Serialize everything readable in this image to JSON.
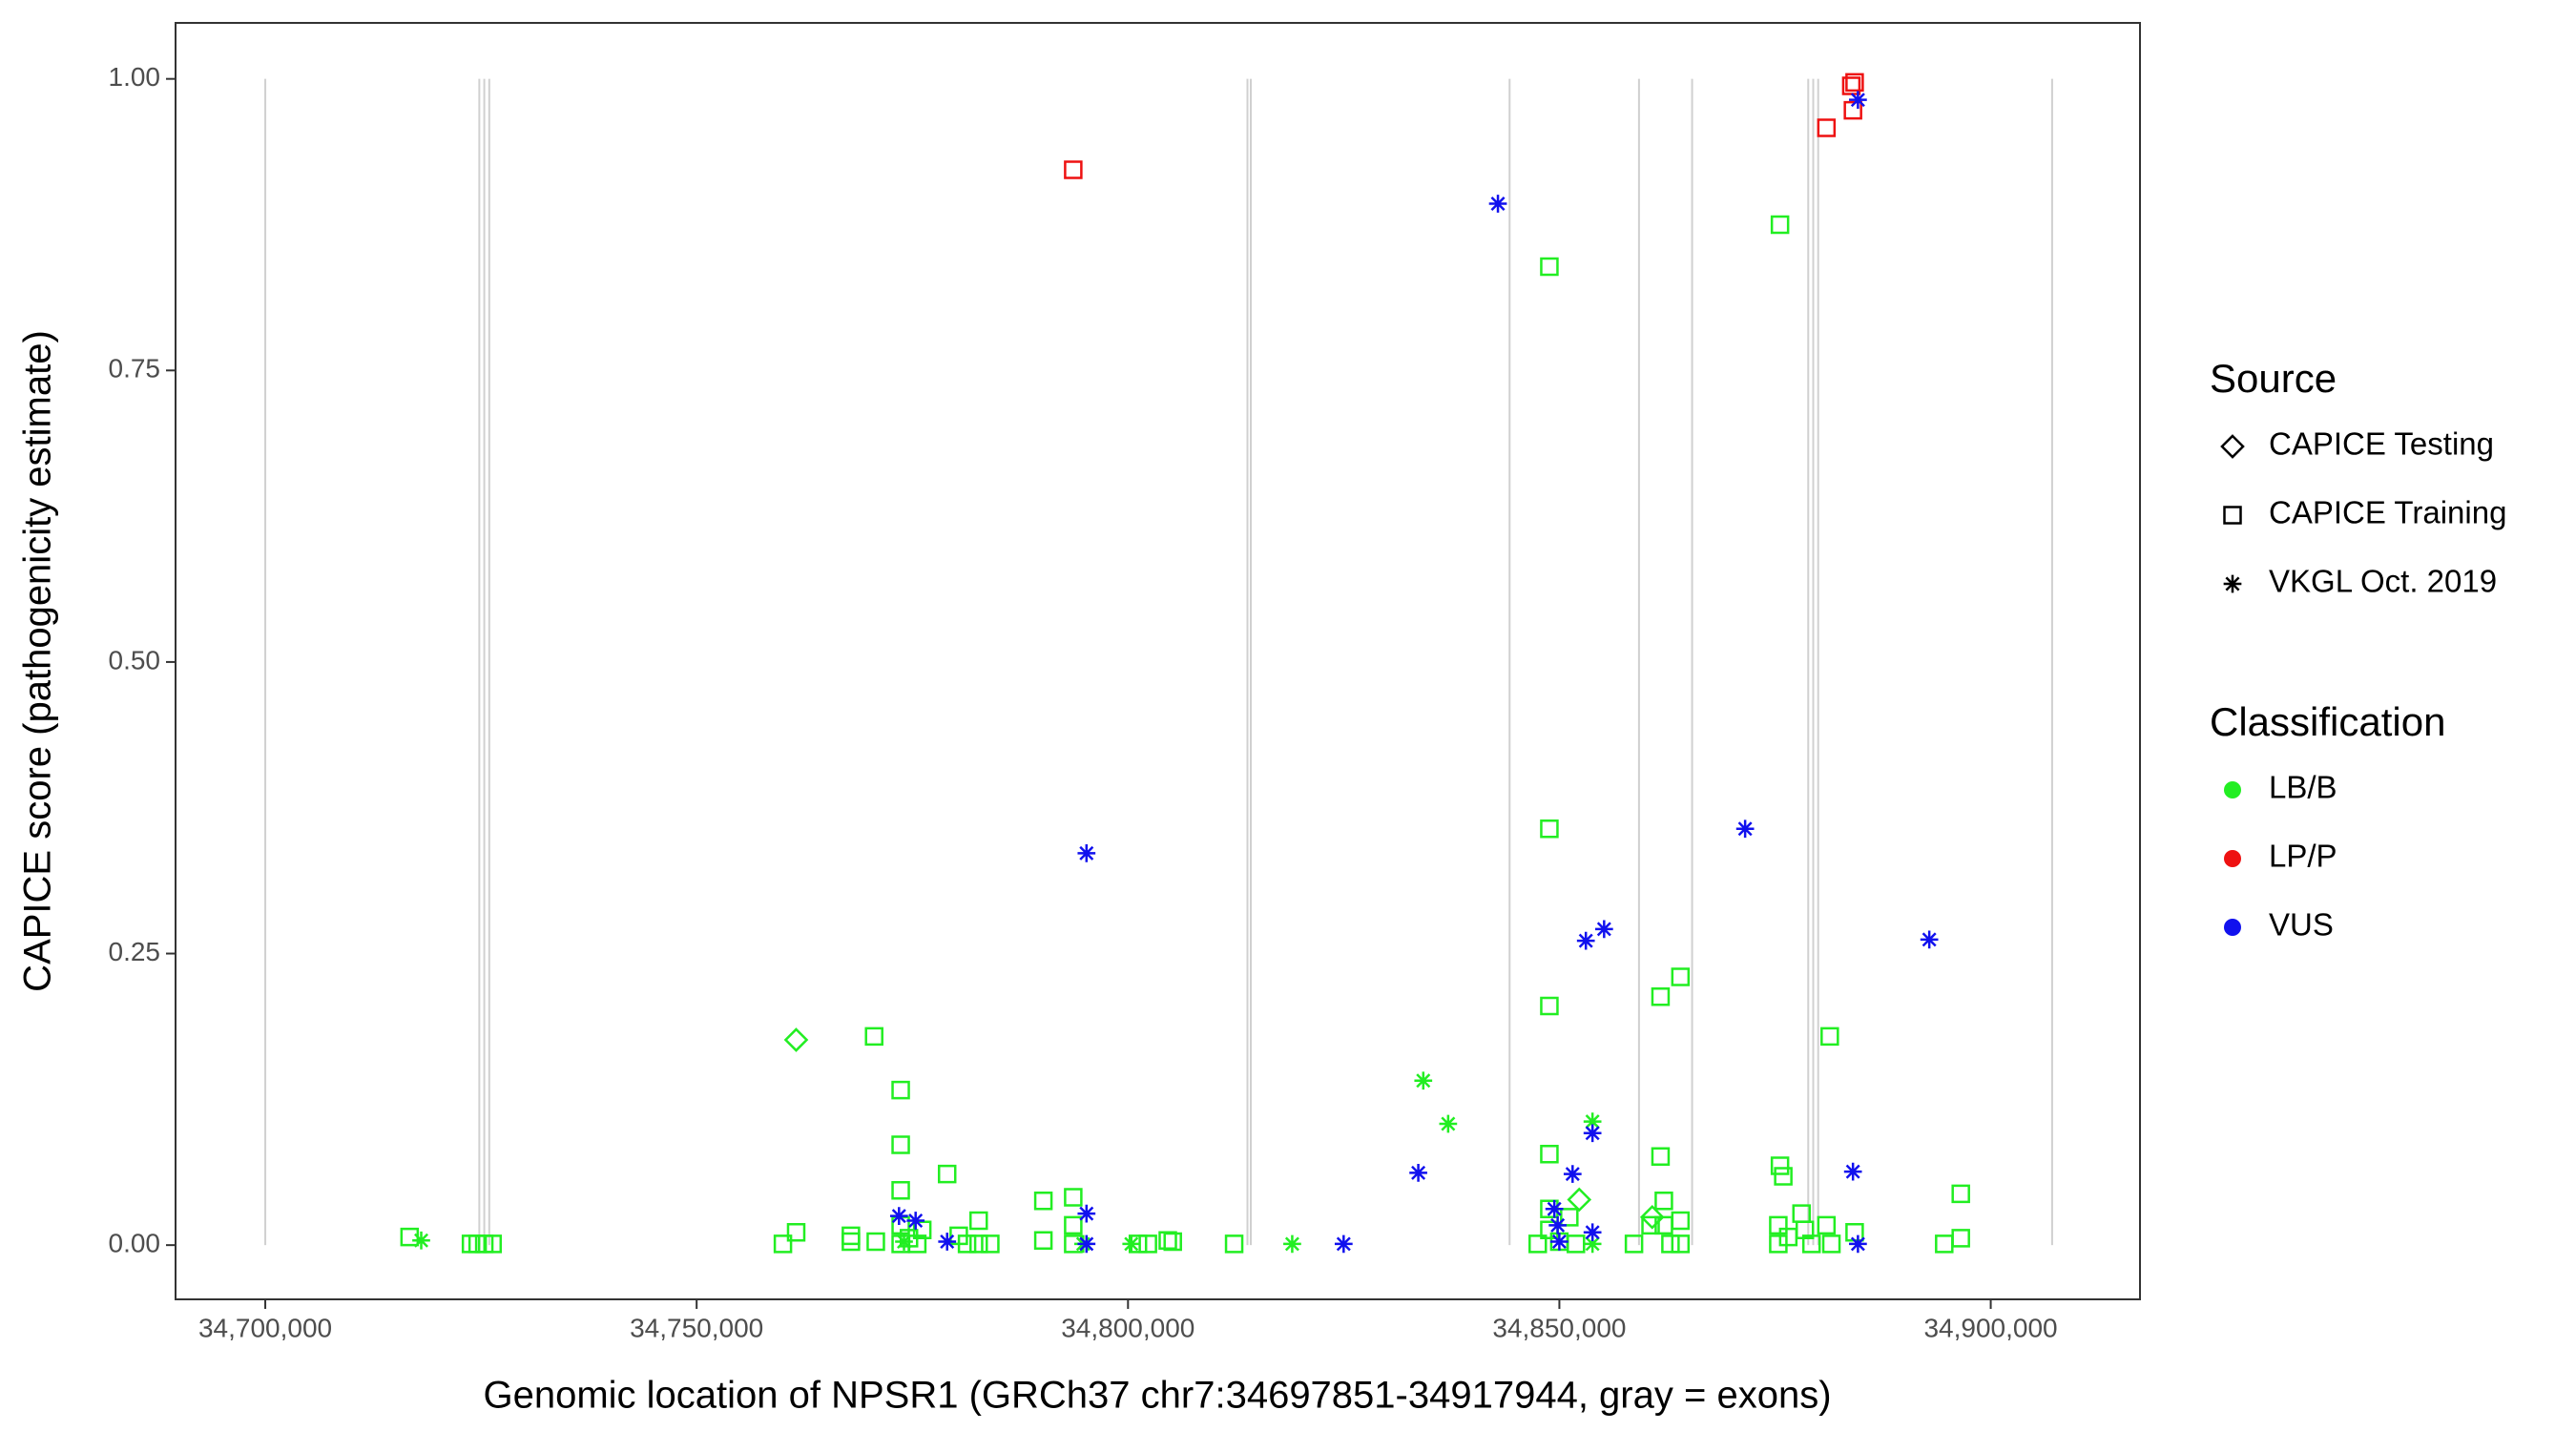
{
  "chart_data": {
    "type": "scatter",
    "x_label": "Genomic location of NPSR1 (GRCh37 chr7:34697851-34917944, gray = exons)",
    "y_label": "CAPICE score (pathogenicity estimate)",
    "xlim": [
      34689600,
      34917300
    ],
    "ylim": [
      -0.0465,
      1.048
    ],
    "xticks": [
      {
        "value": 34700000,
        "label": "34,700,000"
      },
      {
        "value": 34750000,
        "label": "34,750,000"
      },
      {
        "value": 34800000,
        "label": "34,800,000"
      },
      {
        "value": 34850000,
        "label": "34,850,000"
      },
      {
        "value": 34900000,
        "label": "34,900,000"
      }
    ],
    "yticks": [
      {
        "value": 0,
        "label": "0.00"
      },
      {
        "value": 0.25,
        "label": "0.25"
      },
      {
        "value": 0.5,
        "label": "0.50"
      },
      {
        "value": 0.75,
        "label": "0.75"
      },
      {
        "value": 1,
        "label": "1.00"
      }
    ],
    "exons": [
      34700000,
      34724808,
      34725385,
      34725962,
      34813846,
      34814231,
      34844231,
      34859231,
      34865385,
      34878846,
      34879423,
      34880000,
      34907115
    ],
    "exon_color": "#d0d0d0",
    "shape_legend": {
      "title": "Source",
      "items": [
        {
          "name": "CAPICE Testing",
          "shape": "diamond"
        },
        {
          "name": "CAPICE Training",
          "shape": "square"
        },
        {
          "name": "VKGL Oct. 2019",
          "shape": "asterisk"
        }
      ]
    },
    "color_legend": {
      "title": "Classification",
      "items": [
        {
          "name": "LB/B",
          "color": "#22ee22"
        },
        {
          "name": "LP/P",
          "color": "#ee1111"
        },
        {
          "name": "VUS",
          "color": "#1111ee"
        }
      ]
    },
    "series": [
      {
        "source": "CAPICE Training",
        "classification": "LB/B",
        "x": [
          34716730,
          34723845,
          34724614,
          34725384,
          34726345,
          34760000,
          34761536,
          34767882,
          34767882,
          34770574,
          34770766,
          34773651,
          34773651,
          34773651,
          34773651,
          34773651,
          34774612,
          34775574,
          34776151,
          34779035,
          34780381,
          34781343,
          34782689,
          34782689,
          34784035,
          34790189,
          34790189,
          34793650,
          34793650,
          34793650,
          34801150,
          34802304,
          34804611,
          34805188,
          34812303,
          34847494,
          34848840,
          34848840,
          34848840,
          34848840,
          34848840,
          34848840,
          34849994,
          34851148,
          34851917,
          34858648,
          34860571,
          34861724,
          34861724,
          34862109,
          34862109,
          34862878,
          34864032,
          34864032,
          34864032,
          34875570,
          34875570,
          34875955,
          34875378,
          34875378,
          34876531,
          34878070,
          34878454,
          34879224,
          34881339,
          34880954,
          34881531,
          34884223,
          34894608,
          34896531,
          34896531
        ],
        "values": [
          0.007,
          0.001,
          0.001,
          0.001,
          0.001,
          0.001,
          0.011,
          0.003,
          0.008,
          0.179,
          0.003,
          0.133,
          0.086,
          0.047,
          0.017,
          0.001,
          0.006,
          0.001,
          0.013,
          0.061,
          0.008,
          0.001,
          0.021,
          0.001,
          0.001,
          0.038,
          0.004,
          0.041,
          0.017,
          0.001,
          0.001,
          0.001,
          0.004,
          0.003,
          0.001,
          0.001,
          0.839,
          0.357,
          0.205,
          0.078,
          0.031,
          0.013,
          0.003,
          0.024,
          0.001,
          0.001,
          0.017,
          0.213,
          0.076,
          0.038,
          0.017,
          0.001,
          0.23,
          0.021,
          0.001,
          0.875,
          0.068,
          0.059,
          0.017,
          0.001,
          0.007,
          0.027,
          0.013,
          0.001,
          0.179,
          0.017,
          0.001,
          0.011,
          0.001,
          0.044,
          0.006
        ]
      },
      {
        "source": "CAPICE Testing",
        "classification": "LB/B",
        "x": [
          34761536,
          34852302,
          34860763
        ],
        "values": [
          0.176,
          0.039,
          0.024
        ]
      },
      {
        "source": "VKGL Oct. 2019",
        "classification": "LB/B",
        "x": [
          34718076,
          34774036,
          34794804,
          34800381,
          34819034,
          34834225,
          34837110,
          34853840,
          34853840
        ],
        "values": [
          0.004,
          0.003,
          0.001,
          0.001,
          0.001,
          0.141,
          0.104,
          0.106,
          0.001
        ]
      },
      {
        "source": "CAPICE Training",
        "classification": "LP/P",
        "x": [
          34793650,
          34880954,
          34883839,
          34884223,
          34884031
        ],
        "values": [
          0.922,
          0.958,
          0.994,
          0.997,
          0.973
        ]
      },
      {
        "source": "VKGL Oct. 2019",
        "classification": "VUS",
        "x": [
          34773459,
          34775382,
          34779035,
          34795189,
          34795189,
          34795189,
          34824995,
          34833649,
          34842879,
          34849417,
          34849802,
          34849994,
          34851533,
          34853071,
          34855186,
          34853840,
          34853840,
          34871532,
          34884031,
          34884608,
          34884608,
          34892877
        ],
        "values": [
          0.025,
          0.021,
          0.003,
          0.336,
          0.027,
          0.001,
          0.001,
          0.062,
          0.893,
          0.031,
          0.017,
          0.003,
          0.061,
          0.261,
          0.271,
          0.096,
          0.011,
          0.357,
          0.063,
          0.001,
          0.982,
          0.262
        ]
      }
    ]
  }
}
